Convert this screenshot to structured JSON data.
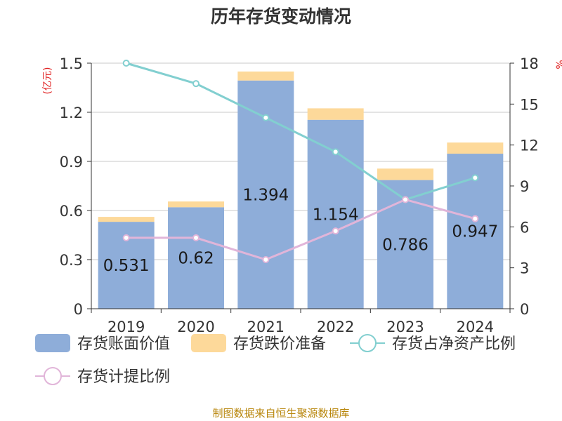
{
  "chart_data": {
    "type": "bar",
    "title": "历年存货变动情况",
    "categories": [
      "2019",
      "2020",
      "2021",
      "2022",
      "2023",
      "2024"
    ],
    "y_left_label": "(亿元)",
    "y_left_range": [
      0,
      1.5
    ],
    "y_left_ticks": [
      "0",
      "0.3",
      "0.6",
      "0.9",
      "1.2",
      "1.5"
    ],
    "y_right_label": "%",
    "y_right_range": [
      0,
      18
    ],
    "y_right_ticks": [
      "0",
      "3",
      "6",
      "9",
      "12",
      "15",
      "18"
    ],
    "grid": true,
    "legend_position": "bottom",
    "series": [
      {
        "name": "存货账面价值",
        "kind": "bar",
        "axis": "left",
        "stack": "inventory",
        "color": "#8eadd9",
        "values": [
          0.531,
          0.62,
          1.394,
          1.154,
          0.786,
          0.947
        ],
        "data_labels": [
          "0.531",
          "0.62",
          "1.394",
          "1.154",
          "0.786",
          "0.947"
        ]
      },
      {
        "name": "存货跌价准备",
        "kind": "bar",
        "axis": "left",
        "stack": "inventory",
        "color": "#fdd99a",
        "values": [
          0.03,
          0.035,
          0.055,
          0.07,
          0.07,
          0.068
        ]
      },
      {
        "name": "存货占净资产比例",
        "kind": "line",
        "axis": "right",
        "color": "#82cfd0",
        "values": [
          18.0,
          16.5,
          14.0,
          11.5,
          8.0,
          9.6
        ]
      },
      {
        "name": "存货计提比例",
        "kind": "line",
        "axis": "right",
        "color": "#e1b5d9",
        "values": [
          5.2,
          5.2,
          3.6,
          5.7,
          8.0,
          6.6
        ]
      }
    ]
  },
  "footer": "制图数据来自恒生聚源数据库"
}
